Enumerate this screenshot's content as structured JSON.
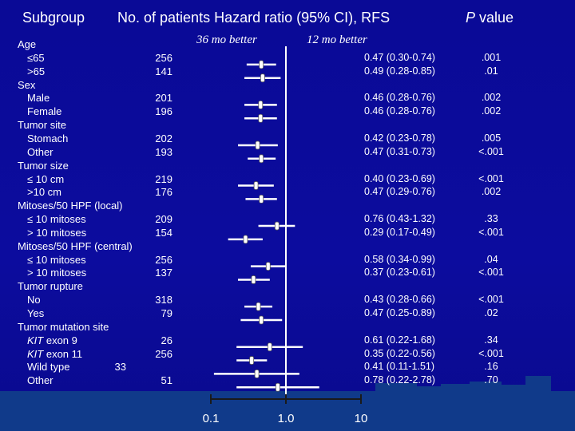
{
  "header": {
    "subgroup": "Subgroup",
    "patients_hr": "No. of patients   Hazard ratio (95% CI), RFS",
    "pvalue_italic": "P",
    "pvalue_rest": " value",
    "left_better": "36 mo better",
    "right_better": "12 mo better"
  },
  "rows": [
    {
      "label": "Age",
      "kind": "group"
    },
    {
      "label": "≤65",
      "n": "256",
      "hr": "0.47 (0.30-0.74)",
      "p": ".001"
    },
    {
      "label": ">65",
      "n": "141",
      "hr": "0.49 (0.28-0.85)",
      "p": ".01"
    },
    {
      "label": "Sex",
      "kind": "group"
    },
    {
      "label": "Male",
      "n": "201",
      "hr": "0.46 (0.28-0.76)",
      "p": ".002"
    },
    {
      "label": "Female",
      "n": "196",
      "hr": "0.46 (0.28-0.76)",
      "p": ".002"
    },
    {
      "label": "Tumor site",
      "kind": "group"
    },
    {
      "label": "Stomach",
      "n": "202",
      "hr": "0.42 (0.23-0.78)",
      "p": ".005"
    },
    {
      "label": "Other",
      "n": "193",
      "hr": "0.47 (0.31-0.73)",
      "p": "<.001"
    },
    {
      "label": "Tumor size",
      "kind": "group"
    },
    {
      "label": "≤ 10 cm",
      "n": "219",
      "hr": "0.40 (0.23-0.69)",
      "p": "<.001"
    },
    {
      "label": ">10 cm",
      "n": "176",
      "hr": "0.47 (0.29-0.76)",
      "p": ".002"
    },
    {
      "label": "Mitoses/50 HPF (local)",
      "kind": "group"
    },
    {
      "label": "≤ 10 mitoses",
      "n": "209",
      "hr": "0.76 (0.43-1.32)",
      "p": ".33"
    },
    {
      "label": "> 10 mitoses",
      "n": "154",
      "hr": "0.29 (0.17-0.49)",
      "p": "<.001"
    },
    {
      "label": "Mitoses/50 HPF (central)",
      "kind": "group"
    },
    {
      "label": "≤ 10 mitoses",
      "n": "256",
      "hr": "0.58 (0.34-0.99)",
      "p": ".04"
    },
    {
      "label": "> 10 mitoses",
      "n": "137",
      "hr": "0.37 (0.23-0.61)",
      "p": "<.001"
    },
    {
      "label": "Tumor rupture",
      "kind": "group"
    },
    {
      "label": "No",
      "n": "318",
      "hr": "0.43 (0.28-0.66)",
      "p": "<.001"
    },
    {
      "label": "Yes",
      "n": "79",
      "hr": "0.47 (0.25-0.89)",
      "p": ".02"
    },
    {
      "label": "Tumor mutation site",
      "kind": "group"
    },
    {
      "label_it": "KIT",
      "label": " exon 9",
      "n": "26",
      "hr": "0.61 (0.22-1.68)",
      "p": ".34"
    },
    {
      "label_it": "KIT",
      "label": " exon 11",
      "n": "256",
      "hr": "0.35 (0.22-0.56)",
      "p": "<.001"
    },
    {
      "label": "Wild type",
      "n": "33",
      "hr": "0.41 (0.11-1.51)",
      "p": ".16"
    },
    {
      "label": "Other",
      "n": "51",
      "hr": "0.78 (0.22-2.78)",
      "p": ".70"
    }
  ],
  "chart_data": {
    "type": "forest",
    "xaxis": {
      "scale": "log",
      "ticks": [
        "0.1",
        "1.0",
        "10"
      ],
      "range": [
        0.1,
        10
      ]
    },
    "reference_line": 1.0,
    "series": [
      {
        "subgroup": "Age ≤65",
        "hr": 0.47,
        "ci": [
          0.3,
          0.74
        ]
      },
      {
        "subgroup": "Age >65",
        "hr": 0.49,
        "ci": [
          0.28,
          0.85
        ]
      },
      {
        "subgroup": "Male",
        "hr": 0.46,
        "ci": [
          0.28,
          0.76
        ]
      },
      {
        "subgroup": "Female",
        "hr": 0.46,
        "ci": [
          0.28,
          0.76
        ]
      },
      {
        "subgroup": "Stomach",
        "hr": 0.42,
        "ci": [
          0.23,
          0.78
        ]
      },
      {
        "subgroup": "Other site",
        "hr": 0.47,
        "ci": [
          0.31,
          0.73
        ]
      },
      {
        "subgroup": "≤ 10 cm",
        "hr": 0.4,
        "ci": [
          0.23,
          0.69
        ]
      },
      {
        "subgroup": ">10 cm",
        "hr": 0.47,
        "ci": [
          0.29,
          0.76
        ]
      },
      {
        "subgroup": "≤ 10 mitoses (local)",
        "hr": 0.76,
        "ci": [
          0.43,
          1.32
        ]
      },
      {
        "subgroup": "> 10 mitoses (local)",
        "hr": 0.29,
        "ci": [
          0.17,
          0.49
        ]
      },
      {
        "subgroup": "≤ 10 mitoses (central)",
        "hr": 0.58,
        "ci": [
          0.34,
          0.99
        ]
      },
      {
        "subgroup": "> 10 mitoses (central)",
        "hr": 0.37,
        "ci": [
          0.23,
          0.61
        ]
      },
      {
        "subgroup": "Rupture No",
        "hr": 0.43,
        "ci": [
          0.28,
          0.66
        ]
      },
      {
        "subgroup": "Rupture Yes",
        "hr": 0.47,
        "ci": [
          0.25,
          0.89
        ]
      },
      {
        "subgroup": "KIT exon 9",
        "hr": 0.61,
        "ci": [
          0.22,
          1.68
        ]
      },
      {
        "subgroup": "KIT exon 11",
        "hr": 0.35,
        "ci": [
          0.22,
          0.56
        ]
      },
      {
        "subgroup": "Wild type",
        "hr": 0.41,
        "ci": [
          0.11,
          1.51
        ]
      },
      {
        "subgroup": "Other mutation",
        "hr": 0.78,
        "ci": [
          0.22,
          2.78
        ]
      }
    ]
  }
}
